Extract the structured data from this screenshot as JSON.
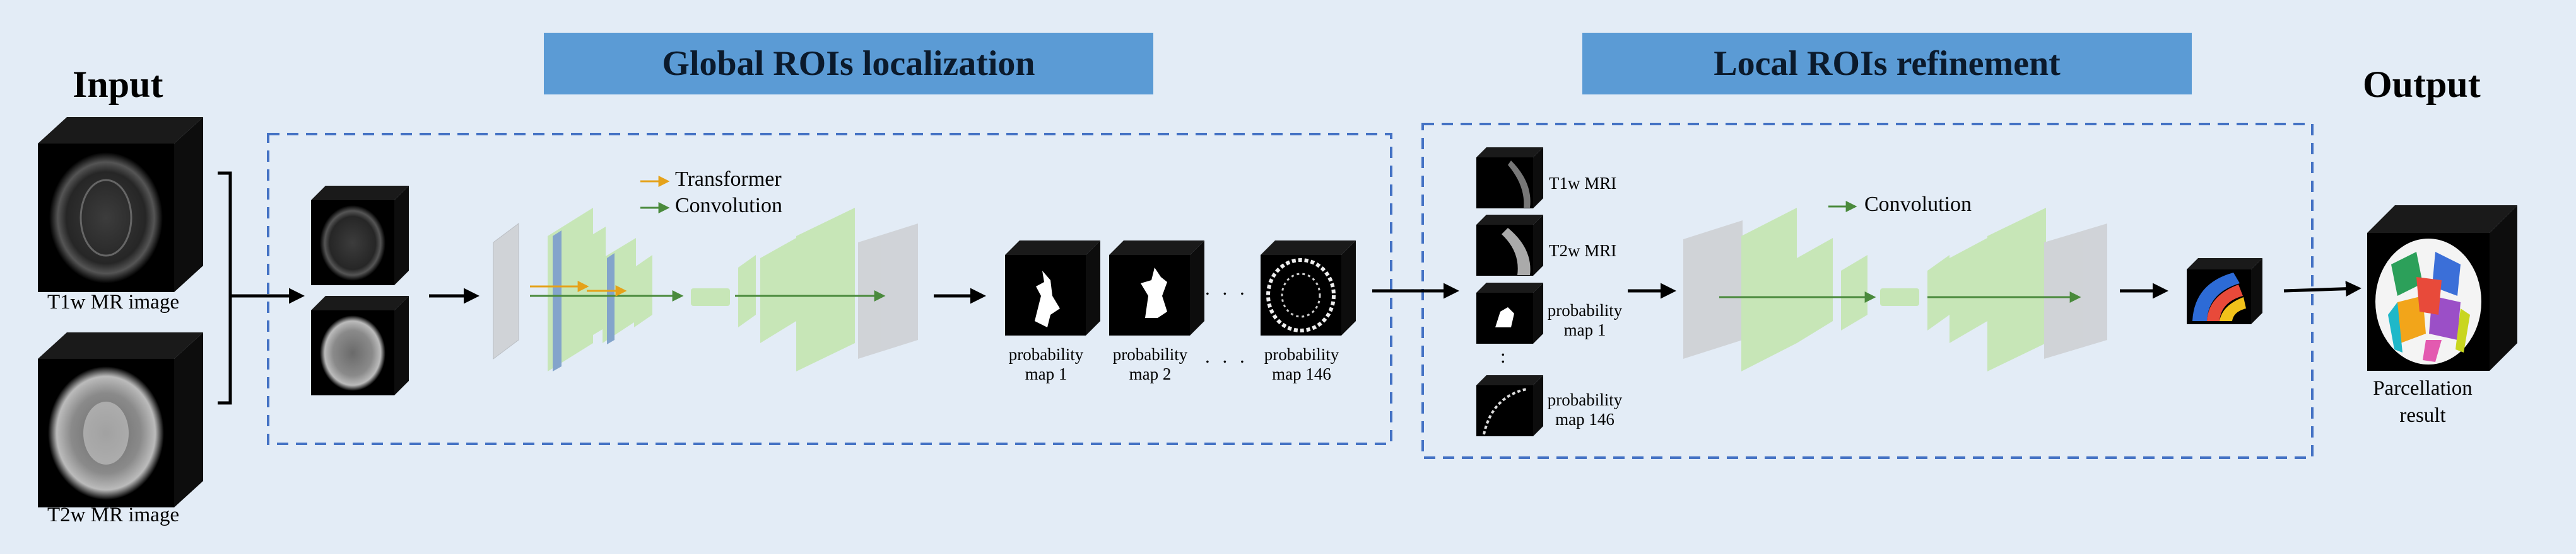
{
  "headings": {
    "input": "Input",
    "output": "Output"
  },
  "banners": {
    "global": "Global ROIs localization",
    "local": "Local ROIs refinement"
  },
  "inputs": {
    "t1w": "T1w MR image",
    "t2w": "T2w MR image"
  },
  "global_legend": {
    "transformer": "Transformer",
    "convolution": "Convolution"
  },
  "prob_maps": {
    "map1": "probability map 1",
    "map2": "probability map 2",
    "map146": "probability map 146",
    "ellipsis": ". . ."
  },
  "local_inputs": {
    "t1w": "T1w MRI",
    "t2w": "T2w MRI",
    "map1": "probability map 1",
    "map146": "probability map 146",
    "ellipsis": ":"
  },
  "local_legend": {
    "convolution": "Convolution"
  },
  "output": {
    "caption": "Parcellation result"
  },
  "colors": {
    "background": "#e3ecf6",
    "banner": "#5b9bd5",
    "dashed_border": "#4472c4",
    "transformer_arrow": "#e5a21a",
    "convolution_arrow": "#4a8a3c",
    "conv_layer": "#c6e6b4",
    "transformer_layer": "#7ea1c9",
    "grey_layer": "#cfd2d6"
  }
}
